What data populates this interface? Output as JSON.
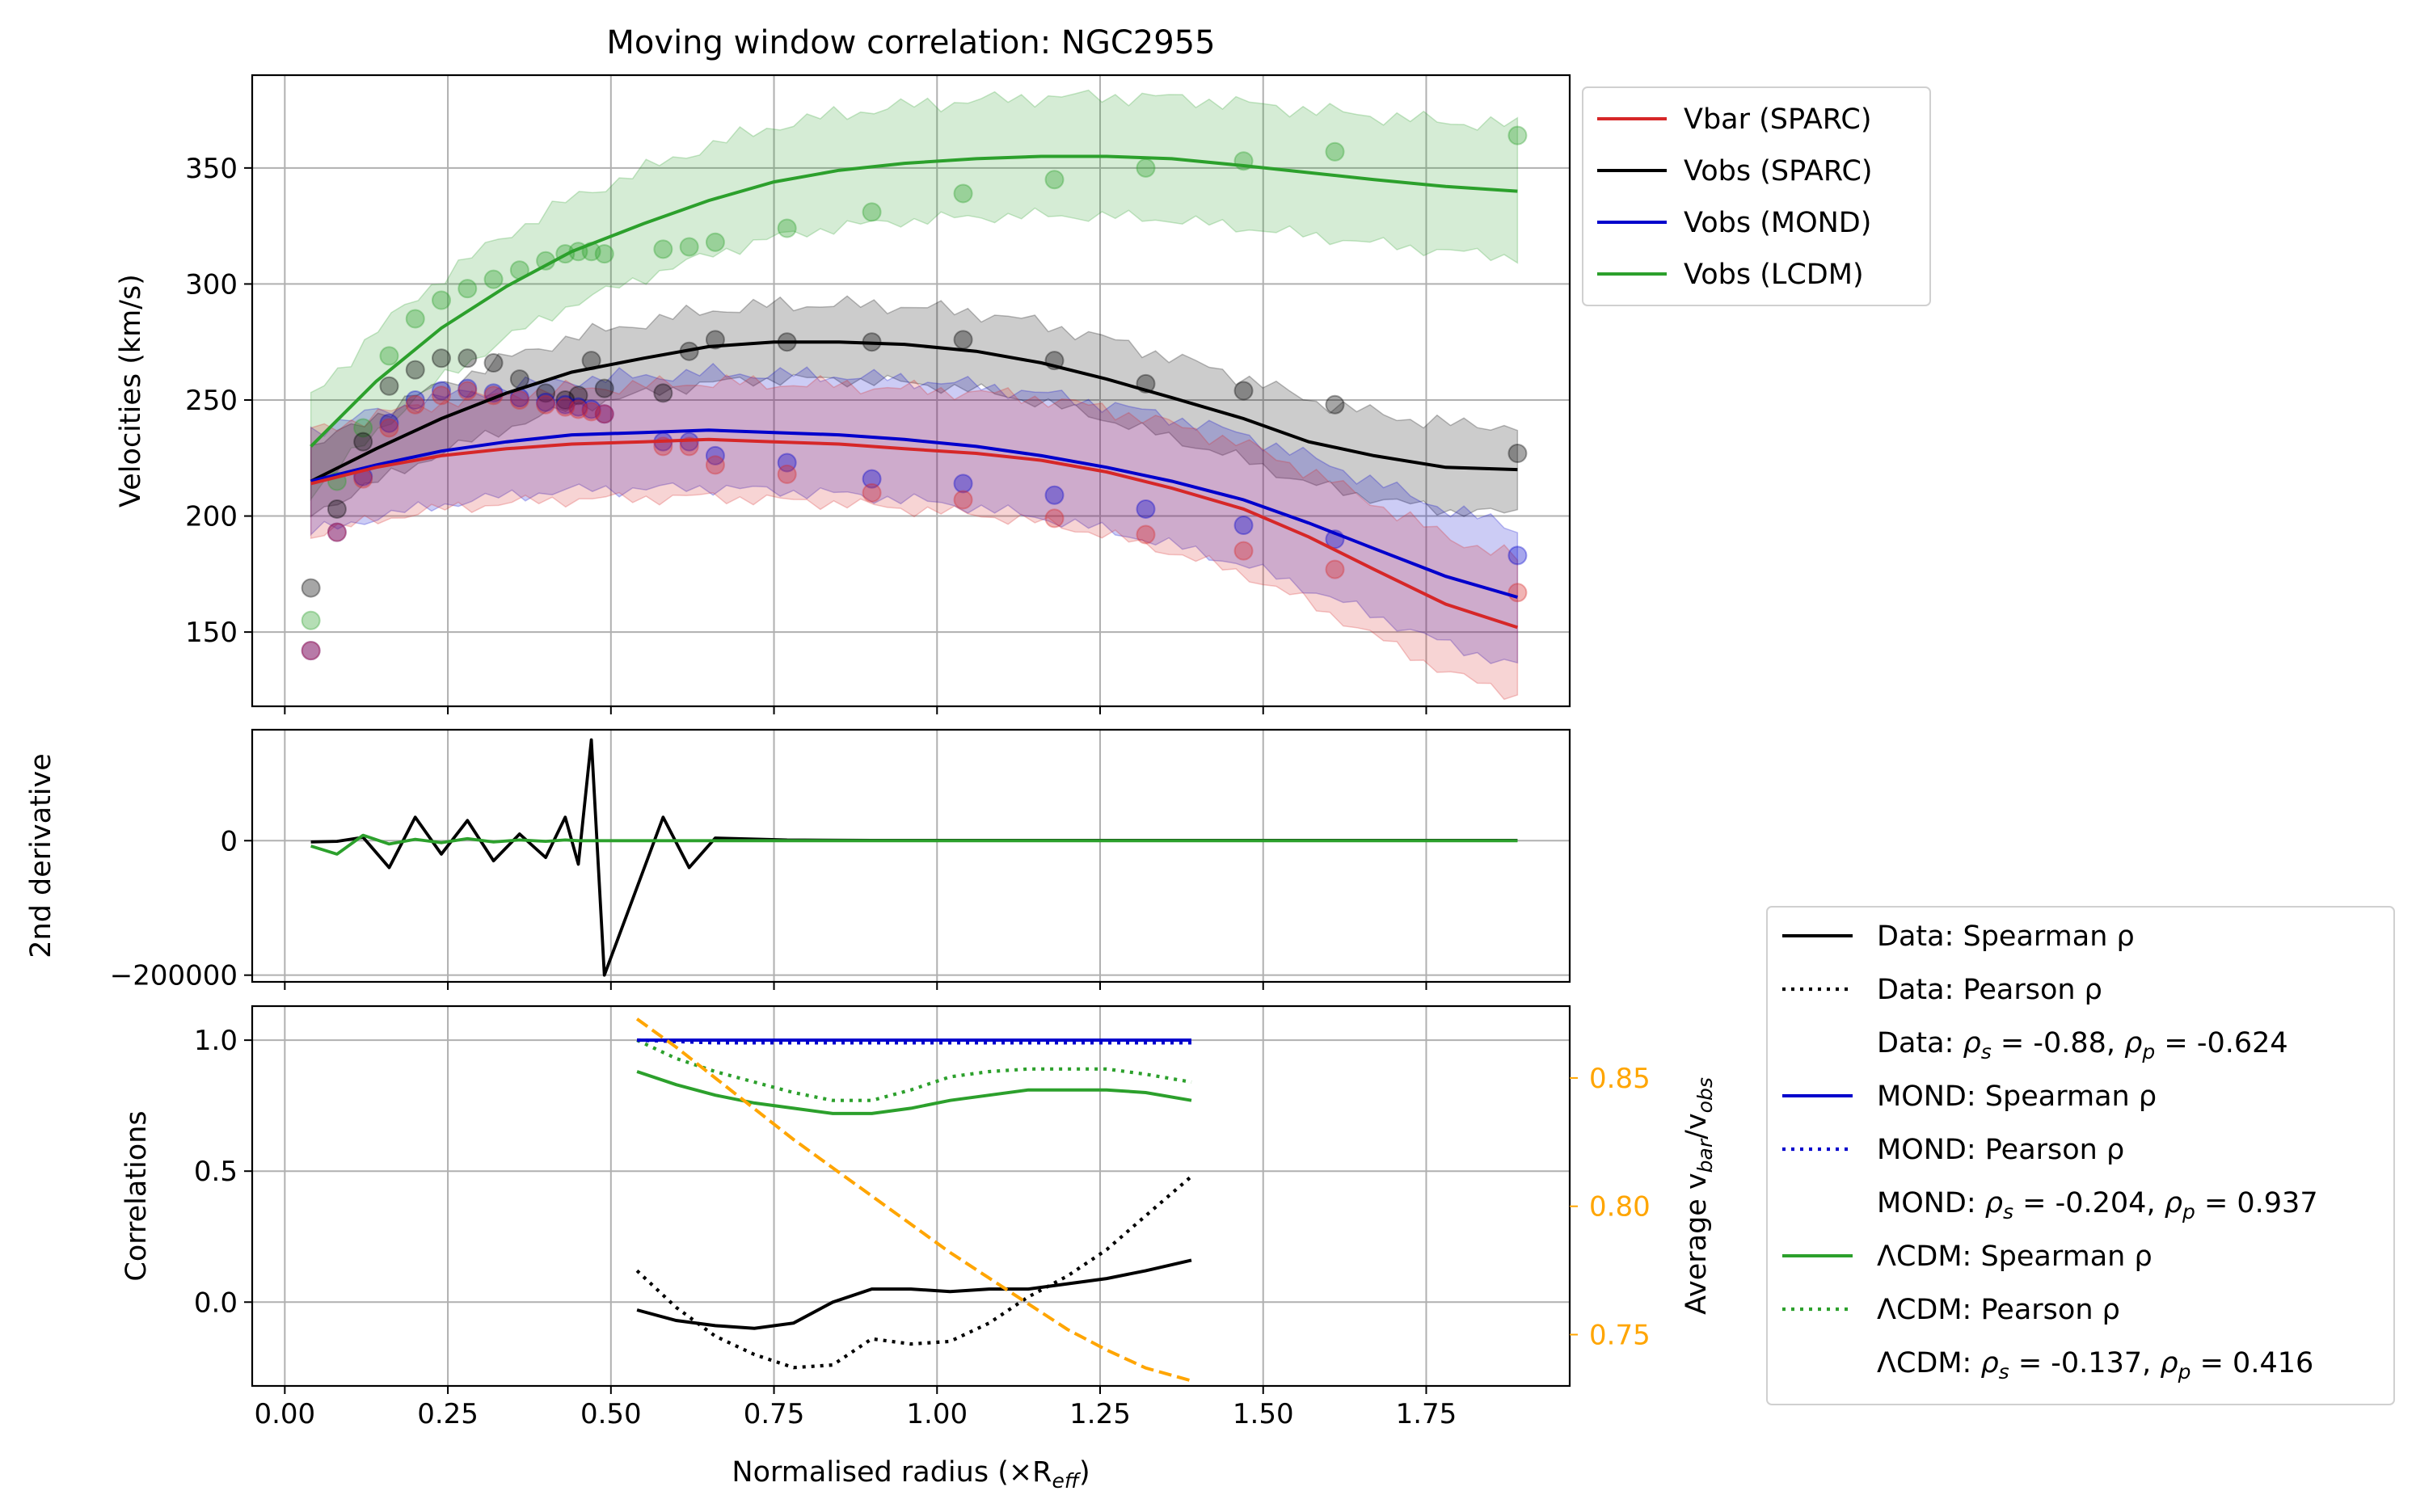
{
  "chart_data": [
    {
      "type": "scatter",
      "title": "Moving window correlation: NGC2955",
      "xlabel": "",
      "ylabel": "Velocities (km/s)",
      "xlim": [
        -0.05,
        1.97
      ],
      "ylim": [
        118,
        390
      ],
      "yticks": [
        150,
        200,
        250,
        300,
        350
      ],
      "grid": true,
      "legend_placement": "outside upper-right",
      "radius": [
        0.04,
        0.08,
        0.12,
        0.16,
        0.2,
        0.24,
        0.28,
        0.32,
        0.36,
        0.4,
        0.43,
        0.45,
        0.47,
        0.49,
        0.58,
        0.62,
        0.66,
        0.77,
        0.9,
        1.04,
        1.18,
        1.32,
        1.47,
        1.61,
        1.89
      ],
      "series": [
        {
          "name": "Vbar (SPARC)",
          "color": "#d62728",
          "points": [
            142,
            193,
            216,
            238,
            248,
            252,
            254,
            252,
            250,
            248,
            247,
            246,
            245,
            244,
            230,
            230,
            222,
            218,
            210,
            207,
            199,
            192,
            185,
            177,
            167
          ],
          "fit": [
            214,
            221,
            226,
            229,
            231,
            232,
            233,
            232,
            231,
            229,
            227,
            224,
            219,
            212,
            203,
            191,
            177,
            162,
            152
          ],
          "band_halfwidth": 22
        },
        {
          "name": "Vobs (SPARC)",
          "color": "#000000",
          "points": [
            169,
            203,
            232,
            256,
            263,
            268,
            268,
            266,
            259,
            253,
            250,
            252,
            267,
            255,
            253,
            271,
            276,
            275,
            275,
            276,
            267,
            257,
            254,
            248,
            227
          ],
          "fit": [
            215,
            229,
            242,
            253,
            262,
            268,
            273,
            275,
            275,
            274,
            271,
            266,
            259,
            251,
            242,
            232,
            226,
            221,
            220
          ],
          "band_halfwidth": 14
        },
        {
          "name": "Vobs (MOND)",
          "color": "#0000cc",
          "points": [
            142,
            193,
            217,
            240,
            250,
            254,
            255,
            253,
            251,
            249,
            248,
            247,
            246,
            244,
            232,
            232,
            226,
            223,
            216,
            214,
            209,
            203,
            196,
            190,
            183
          ],
          "fit": [
            215,
            222,
            228,
            232,
            235,
            236,
            237,
            236,
            235,
            233,
            230,
            226,
            221,
            215,
            207,
            197,
            186,
            174,
            165
          ],
          "band_halfwidth": 22
        },
        {
          "name": "Vobs (LCDM)",
          "color": "#2ca02c",
          "points": [
            155,
            215,
            238,
            269,
            285,
            293,
            298,
            302,
            306,
            310,
            313,
            314,
            314,
            313,
            315,
            316,
            318,
            324,
            331,
            339,
            345,
            350,
            353,
            357,
            364
          ],
          "fit": [
            230,
            258,
            281,
            299,
            314,
            326,
            336,
            344,
            349,
            352,
            354,
            355,
            355,
            354,
            351,
            348,
            345,
            342,
            340
          ],
          "band_halfwidth": 21
        }
      ],
      "fit_radius": [
        0.04,
        0.14,
        0.24,
        0.34,
        0.44,
        0.55,
        0.65,
        0.75,
        0.85,
        0.95,
        1.06,
        1.16,
        1.26,
        1.36,
        1.47,
        1.57,
        1.67,
        1.78,
        1.89
      ]
    },
    {
      "type": "line",
      "xlabel": "",
      "ylabel": "2nd derivative",
      "xlim": [
        -0.05,
        1.97
      ],
      "ylim": [
        -210000,
        165000
      ],
      "yticks": [
        -200000,
        0
      ],
      "ytick_labels": [
        "−200000",
        "0"
      ],
      "grid": true,
      "x": [
        0.04,
        0.08,
        0.12,
        0.16,
        0.2,
        0.24,
        0.28,
        0.32,
        0.36,
        0.4,
        0.43,
        0.45,
        0.47,
        0.49,
        0.58,
        0.62,
        0.66,
        0.77,
        0.9,
        1.04,
        1.18,
        1.32,
        1.47,
        1.61,
        1.89
      ],
      "series": [
        {
          "color": "#000000",
          "values": [
            -2000,
            -1000,
            5000,
            -40000,
            35000,
            -20000,
            30000,
            -30000,
            10000,
            -25000,
            35000,
            -35000,
            150000,
            -200000,
            35000,
            -40000,
            4000,
            1000,
            500,
            500,
            500,
            500,
            500,
            500,
            500
          ]
        },
        {
          "color": "#2ca02c",
          "values": [
            -8000,
            -20000,
            8000,
            -5000,
            2000,
            -3000,
            3000,
            -2000,
            1000,
            -1000,
            1000,
            0,
            0,
            0,
            0,
            0,
            0,
            0,
            0,
            0,
            0,
            0,
            0,
            0,
            0
          ]
        }
      ]
    },
    {
      "type": "line",
      "xlabel": "Normalised radius (×R",
      "xlabel_sub": "eff",
      "xlabel_close": ")",
      "ylabel": "Correlations",
      "xlim": [
        -0.05,
        1.97
      ],
      "ylim": [
        -0.32,
        1.13
      ],
      "xticks": [
        0.0,
        0.25,
        0.5,
        0.75,
        1.0,
        1.25,
        1.5,
        1.75
      ],
      "xtick_labels": [
        "0.00",
        "0.25",
        "0.50",
        "0.75",
        "1.00",
        "1.25",
        "1.50",
        "1.75"
      ],
      "yticks": [
        0.0,
        0.5,
        1.0
      ],
      "ytick_labels": [
        "0.0",
        "0.5",
        "1.0"
      ],
      "grid": true,
      "x": [
        0.54,
        0.6,
        0.66,
        0.72,
        0.78,
        0.84,
        0.9,
        0.96,
        1.02,
        1.08,
        1.14,
        1.2,
        1.26,
        1.32,
        1.39
      ],
      "series": [
        {
          "name": "Data: Spearman ρ",
          "color": "#000000",
          "style": "solid",
          "values": [
            -0.03,
            -0.07,
            -0.09,
            -0.1,
            -0.08,
            0.0,
            0.05,
            0.05,
            0.04,
            0.05,
            0.05,
            0.07,
            0.09,
            0.12,
            0.16
          ]
        },
        {
          "name": "Data: Pearson ρ",
          "color": "#000000",
          "style": "dotted",
          "values": [
            0.12,
            -0.02,
            -0.13,
            -0.2,
            -0.25,
            -0.24,
            -0.14,
            -0.16,
            -0.15,
            -0.08,
            0.02,
            0.1,
            0.2,
            0.33,
            0.48
          ]
        },
        {
          "name": "MOND: Spearman ρ",
          "color": "#0000cc",
          "style": "solid",
          "values": [
            1.0,
            1.0,
            1.0,
            1.0,
            1.0,
            1.0,
            1.0,
            1.0,
            1.0,
            1.0,
            1.0,
            1.0,
            1.0,
            1.0,
            1.0
          ]
        },
        {
          "name": "MOND: Pearson ρ",
          "color": "#0000cc",
          "style": "dotted",
          "values": [
            1.0,
            0.995,
            0.99,
            0.99,
            0.99,
            0.99,
            0.99,
            0.99,
            0.99,
            0.99,
            0.99,
            0.99,
            0.99,
            0.99,
            0.99
          ]
        },
        {
          "name": "ΛCDM: Spearman ρ",
          "color": "#2ca02c",
          "style": "solid",
          "values": [
            0.88,
            0.83,
            0.79,
            0.76,
            0.74,
            0.72,
            0.72,
            0.74,
            0.77,
            0.79,
            0.81,
            0.81,
            0.81,
            0.8,
            0.77
          ]
        },
        {
          "name": "ΛCDM: Pearson ρ",
          "color": "#2ca02c",
          "style": "dotted",
          "values": [
            1.0,
            0.93,
            0.88,
            0.84,
            0.8,
            0.77,
            0.77,
            0.81,
            0.86,
            0.88,
            0.89,
            0.89,
            0.89,
            0.87,
            0.84
          ]
        }
      ],
      "legend_notes": [
        {
          "prefix": "Data: ",
          "rho_s": "-0.88",
          "rho_p": "-0.624"
        },
        {
          "prefix": "MOND: ",
          "rho_s": "-0.204",
          "rho_p": "0.937"
        },
        {
          "prefix": "ΛCDM: ",
          "rho_s": "-0.137",
          "rho_p": "0.416"
        }
      ],
      "secondary_axis": {
        "ylabel": "Average v",
        "ylabel_sub1": "bar",
        "ylabel_mid": "/v",
        "ylabel_sub2": "obs",
        "color": "#ffa500",
        "ylim": [
          0.73,
          0.878
        ],
        "yticks": [
          0.75,
          0.8,
          0.85
        ],
        "ytick_labels": [
          "0.75",
          "0.80",
          "0.85"
        ],
        "style": "dashed",
        "values": [
          0.873,
          0.862,
          0.85,
          0.838,
          0.826,
          0.815,
          0.804,
          0.793,
          0.782,
          0.772,
          0.762,
          0.752,
          0.744,
          0.737,
          0.732
        ]
      }
    }
  ]
}
